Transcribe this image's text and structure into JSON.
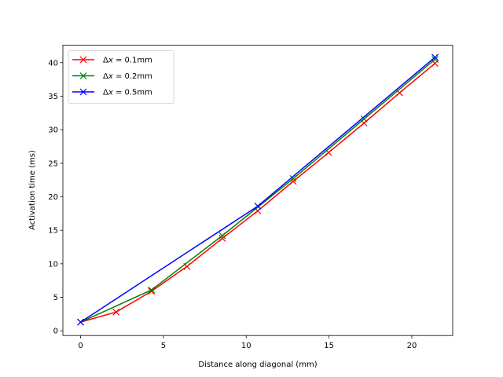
{
  "chart_data": {
    "type": "line",
    "title": "",
    "xlabel": "Distance along diagonal (mm)",
    "ylabel": "Activation time (ms)",
    "xlim": [
      -1.07,
      22.47
    ],
    "ylim": [
      -0.7,
      42.6
    ],
    "xticks": [
      0,
      5,
      10,
      15,
      20
    ],
    "yticks": [
      0,
      5,
      10,
      15,
      20,
      25,
      30,
      35,
      40
    ],
    "grid": false,
    "legend_position": "upper left",
    "marker": "x",
    "series": [
      {
        "name": "Δx = 0.1mm",
        "color": "#ff0000",
        "x": [
          0,
          2.14,
          4.28,
          6.42,
          8.56,
          10.7,
          12.84,
          14.98,
          17.12,
          19.26,
          21.4
        ],
        "y": [
          1.3,
          2.8,
          5.9,
          9.6,
          13.8,
          17.9,
          22.3,
          26.6,
          31.0,
          35.5,
          39.9
        ]
      },
      {
        "name": "Δx = 0.2mm",
        "color": "#008000",
        "x": [
          0,
          4.28,
          8.56,
          12.84,
          17.12,
          21.4
        ],
        "y": [
          1.3,
          6.1,
          14.2,
          22.7,
          31.6,
          40.5
        ]
      },
      {
        "name": "Δx = 0.5mm",
        "color": "#0000ff",
        "x": [
          0,
          10.7,
          21.4
        ],
        "y": [
          1.3,
          18.6,
          40.8
        ]
      }
    ]
  },
  "legend": {
    "items": [
      {
        "prefix": "Δ",
        "var": "x",
        "rest": " = 0.1mm"
      },
      {
        "prefix": "Δ",
        "var": "x",
        "rest": " = 0.2mm"
      },
      {
        "prefix": "Δ",
        "var": "x",
        "rest": " = 0.5mm"
      }
    ]
  }
}
